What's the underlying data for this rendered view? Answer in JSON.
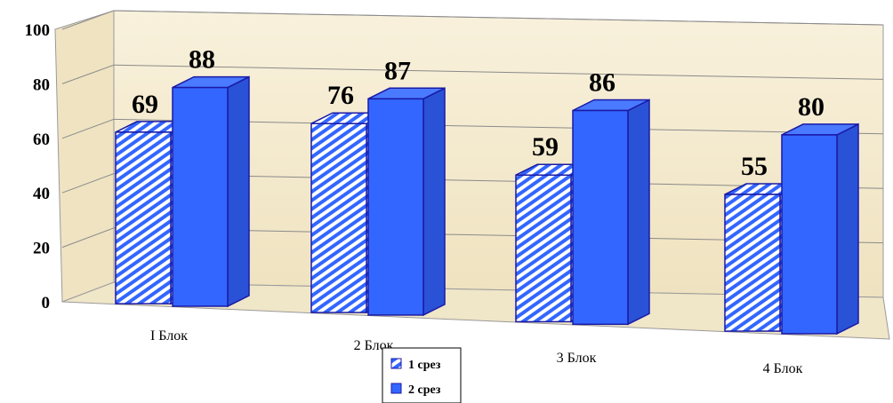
{
  "chart_data": {
    "type": "bar",
    "title": "",
    "xlabel": "",
    "ylabel": "",
    "categories": [
      "I Блок",
      "2 Блок",
      "3 Блок",
      "4 Блок"
    ],
    "series": [
      {
        "name": "1 срез",
        "values": [
          69,
          76,
          59,
          55
        ],
        "pattern": "diagonal-stripes"
      },
      {
        "name": "2 срез",
        "values": [
          88,
          87,
          86,
          80
        ]
      }
    ],
    "ylim": [
      0,
      100
    ],
    "yticks": [
      "0",
      "20",
      "40",
      "60",
      "80",
      "100"
    ],
    "grid": true,
    "legend_position": "bottom-center",
    "colors": {
      "series_fill": "#3366ff",
      "series_side": "#2a52d6",
      "series_top": "#4a7aff",
      "stroke": "#1a1aa6",
      "back_wall": "#f5ecd4",
      "side_wall": "#efe3c2",
      "floor": "#f0e6c8"
    }
  }
}
